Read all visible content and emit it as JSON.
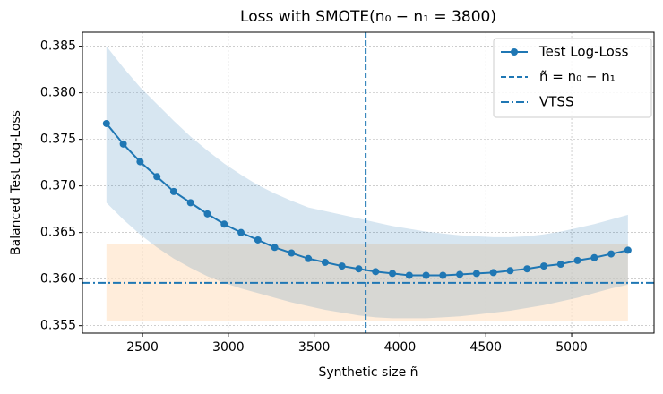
{
  "chart_data": {
    "type": "line",
    "title": "Loss with SMOTE(n₀ − n₁ = 3800)",
    "x_label": "Synthetic size ñ",
    "y_label": "Balanced Test Log-Loss",
    "x": [
      2290,
      2388,
      2486,
      2584,
      2682,
      2780,
      2878,
      2976,
      3074,
      3172,
      3270,
      3368,
      3466,
      3564,
      3662,
      3760,
      3858,
      3956,
      4054,
      4152,
      4250,
      4348,
      4446,
      4544,
      4642,
      4740,
      4838,
      4936,
      5034,
      5132,
      5230,
      5328
    ],
    "series": [
      {
        "name": "Test Log-Loss",
        "color": "#1f77b4",
        "values": [
          0.3767,
          0.3745,
          0.3726,
          0.371,
          0.3694,
          0.3682,
          0.367,
          0.3659,
          0.365,
          0.3642,
          0.3634,
          0.3628,
          0.3622,
          0.3618,
          0.3614,
          0.3611,
          0.3608,
          0.3606,
          0.3604,
          0.3604,
          0.3604,
          0.3605,
          0.3606,
          0.3607,
          0.3609,
          0.3611,
          0.3614,
          0.3616,
          0.362,
          0.3623,
          0.3627,
          0.3631
        ],
        "band_upper": [
          0.385,
          0.3827,
          0.3806,
          0.3788,
          0.377,
          0.3753,
          0.3738,
          0.3724,
          0.3712,
          0.3701,
          0.3692,
          0.3684,
          0.3677,
          0.3673,
          0.3669,
          0.3665,
          0.3661,
          0.3657,
          0.3654,
          0.3651,
          0.3649,
          0.3647,
          0.3646,
          0.3645,
          0.3645,
          0.3646,
          0.3648,
          0.3651,
          0.3655,
          0.3659,
          0.3664,
          0.3669
        ],
        "band_lower": [
          0.3682,
          0.3664,
          0.3648,
          0.3634,
          0.3622,
          0.3612,
          0.3603,
          0.3596,
          0.359,
          0.3585,
          0.358,
          0.3575,
          0.3571,
          0.3567,
          0.3564,
          0.3561,
          0.3559,
          0.3558,
          0.3558,
          0.3558,
          0.3559,
          0.356,
          0.3562,
          0.3564,
          0.3566,
          0.3569,
          0.3572,
          0.3576,
          0.358,
          0.3585,
          0.359,
          0.3594
        ]
      }
    ],
    "vline": {
      "name": "ñ = n₀ − n₁",
      "x": 3800,
      "color": "#1f77b4"
    },
    "hline": {
      "name": "VTSS",
      "y": 0.3596,
      "color": "#1f77b4",
      "band": [
        0.3555,
        0.3638
      ],
      "band_color": "#ffe5cc"
    },
    "xlim": [
      2150,
      5480
    ],
    "ylim": [
      0.3542,
      0.3865
    ],
    "xticks": [
      2500,
      3000,
      3500,
      4000,
      4500,
      5000
    ],
    "yticks": [
      0.355,
      {
        "value": 0.36,
        "label": "0.360"
      },
      0.365,
      {
        "value": 0.37,
        "label": "0.370"
      },
      0.375,
      {
        "value": 0.38,
        "label": "0.380"
      },
      0.385
    ],
    "grid": true,
    "legend": "upper right"
  }
}
